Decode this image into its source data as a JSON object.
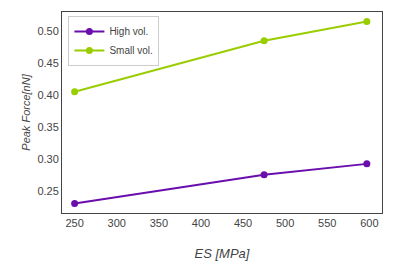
{
  "chart_data": {
    "type": "line",
    "x": [
      250,
      475,
      597
    ],
    "series": [
      {
        "name": "High vol.",
        "color": "#6a0dad",
        "values": [
          0.23,
          0.275,
          0.292
        ]
      },
      {
        "name": "Small vol.",
        "color": "#9acd00",
        "values": [
          0.405,
          0.485,
          0.515
        ]
      }
    ],
    "xlabel": "ES [MPa]",
    "ylabel": "Peak Force[nN]",
    "xlim": [
      235,
      615
    ],
    "ylim": [
      0.215,
      0.53
    ],
    "xticks": [
      250,
      300,
      350,
      400,
      450,
      500,
      550,
      600
    ],
    "yticks": [
      0.25,
      {
        "value": 0.3,
        "label": "0.30"
      },
      0.35,
      {
        "value": 0.4,
        "label": "0.40"
      },
      0.45,
      {
        "value": 0.5,
        "label": "0.50"
      }
    ],
    "marker": "circle",
    "line_style": "solid",
    "legend": "upper left",
    "grid": false
  }
}
